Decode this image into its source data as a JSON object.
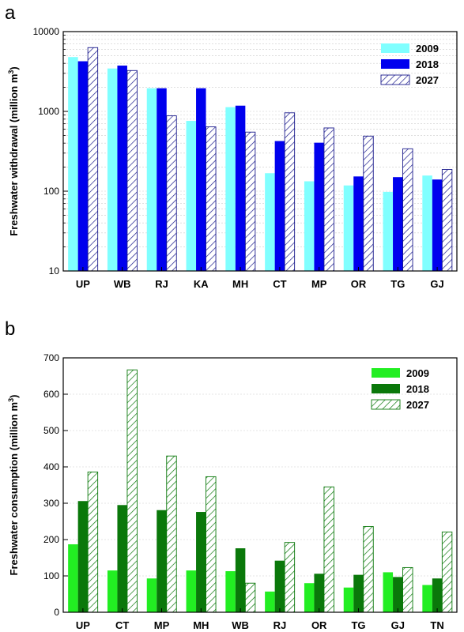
{
  "chart_data": [
    {
      "panel": "a",
      "type": "bar",
      "ylabel": "Freshwater withdrawal (million m",
      "ylabel_sup": "3",
      "ylabel_close": ")",
      "yscale": "log",
      "ylim": [
        10,
        10000
      ],
      "yticks": [
        10,
        100,
        1000,
        10000
      ],
      "categories": [
        "UP",
        "WB",
        "RJ",
        "KA",
        "MH",
        "CT",
        "MP",
        "OR",
        "TG",
        "GJ"
      ],
      "series": [
        {
          "name": "2009",
          "color": "#80ffff",
          "pattern": "solid",
          "values": [
            4800,
            3450,
            1950,
            760,
            1130,
            168,
            133,
            118,
            98,
            157
          ]
        },
        {
          "name": "2018",
          "color": "#0000ee",
          "pattern": "solid",
          "values": [
            4250,
            3750,
            1950,
            1950,
            1180,
            425,
            405,
            153,
            150,
            140
          ]
        },
        {
          "name": "2027",
          "color": "#1a1a8c",
          "pattern": "hatch",
          "values": [
            6300,
            3250,
            880,
            640,
            550,
            960,
            620,
            490,
            340,
            187
          ]
        }
      ],
      "legend_position": "top-right",
      "grid": true
    },
    {
      "panel": "b",
      "type": "bar",
      "ylabel": "Freshwater consumption (million m",
      "ylabel_sup": "3",
      "ylabel_close": ")",
      "yscale": "linear",
      "ylim": [
        0,
        700
      ],
      "yticks": [
        0,
        100,
        200,
        300,
        400,
        500,
        600,
        700
      ],
      "categories": [
        "UP",
        "CT",
        "MP",
        "MH",
        "WB",
        "RJ",
        "OR",
        "TG",
        "GJ",
        "TN"
      ],
      "series": [
        {
          "name": "2009",
          "color": "#22ee22",
          "pattern": "solid",
          "values": [
            187,
            115,
            93,
            115,
            113,
            57,
            80,
            68,
            110,
            75
          ]
        },
        {
          "name": "2018",
          "color": "#0a780a",
          "pattern": "solid",
          "values": [
            306,
            295,
            281,
            276,
            176,
            142,
            106,
            103,
            97,
            93
          ]
        },
        {
          "name": "2027",
          "color": "#0a780a",
          "pattern": "hatch",
          "values": [
            386,
            667,
            430,
            373,
            80,
            192,
            345,
            236,
            123,
            221
          ]
        }
      ],
      "legend_position": "top-right",
      "grid": true
    }
  ]
}
